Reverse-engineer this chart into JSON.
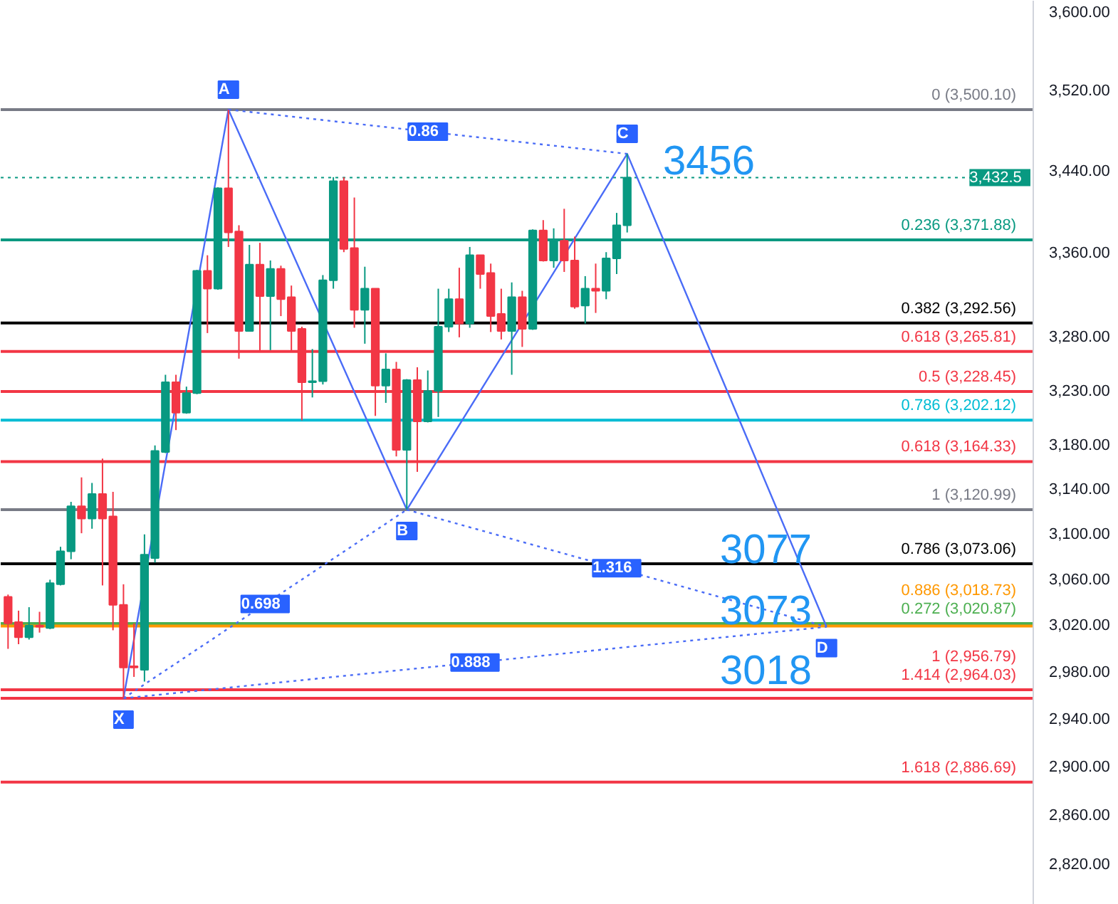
{
  "chart_data": {
    "type": "candlestick",
    "log": true,
    "tick_labels": "y",
    "ylim": [
      2787,
      3611
    ],
    "yticks": [
      {
        "value": 2820,
        "label": "2,820.00"
      },
      {
        "value": 2860,
        "label": "2,860.00"
      },
      {
        "value": 2900,
        "label": "2,900.00"
      },
      {
        "value": 2940,
        "label": "2,940.00"
      },
      {
        "value": 2980,
        "label": "2,980.00"
      },
      {
        "value": 3020,
        "label": "3,020.00"
      },
      {
        "value": 3060,
        "label": "3,060.00"
      },
      {
        "value": 3100,
        "label": "3,100.00"
      },
      {
        "value": 3140,
        "label": "3,140.00"
      },
      {
        "value": 3180,
        "label": "3,180.00"
      },
      {
        "value": 3230,
        "label": "3,230.00"
      },
      {
        "value": 3280,
        "label": "3,280.00"
      },
      {
        "value": 3360,
        "label": "3,360.00"
      },
      {
        "value": 3440,
        "label": "3,440.00"
      },
      {
        "value": 3520,
        "label": "3,520.00"
      },
      {
        "value": 3600,
        "label": "3,600.00"
      }
    ],
    "categories": [
      null,
      null,
      null,
      null,
      null,
      null,
      null,
      null,
      null,
      null,
      null,
      null,
      null,
      null,
      null,
      null,
      null,
      null,
      null,
      null,
      null,
      null,
      null,
      null,
      null,
      null,
      null,
      null,
      null,
      null,
      null,
      null,
      null,
      null,
      null,
      null,
      null,
      null,
      null,
      null,
      null,
      null,
      null,
      null,
      null,
      null,
      null,
      null,
      null,
      null,
      null,
      null,
      null,
      null,
      null,
      null,
      null,
      null,
      null,
      null,
      null,
      null,
      null,
      null,
      null,
      null,
      null,
      null,
      null,
      null,
      null,
      null,
      null,
      null,
      null,
      null,
      null,
      null,
      null,
      null,
      null,
      null,
      null,
      null,
      null,
      null,
      null,
      null,
      null,
      null,
      null,
      null,
      null,
      null,
      null,
      null,
      null,
      null
    ],
    "ohlc": [
      [
        3044,
        3046,
        2999,
        3021
      ],
      [
        3022,
        3032,
        3003,
        3009
      ],
      [
        3009,
        3035,
        3007,
        3019
      ],
      [
        3019,
        3031,
        3013,
        3018
      ],
      [
        3017,
        3059,
        3016,
        3056
      ],
      [
        3055,
        3088,
        3054,
        3084
      ],
      [
        3084,
        3128,
        3077,
        3124
      ],
      [
        3124,
        3150,
        3100,
        3113
      ],
      [
        3113,
        3145,
        3104,
        3135
      ],
      [
        3135,
        3167,
        3054,
        3113
      ],
      [
        3115,
        3137,
        3015,
        3037
      ],
      [
        3037,
        3055,
        2957,
        2983
      ],
      [
        2984,
        3021,
        2975,
        2983
      ],
      [
        2981,
        3099,
        2971,
        3081
      ],
      [
        3078,
        3179,
        3074,
        3174
      ],
      [
        3173,
        3244,
        3172,
        3237
      ],
      [
        3237,
        3244,
        3193,
        3209
      ],
      [
        3209,
        3233,
        3208,
        3227
      ],
      [
        3227,
        3343,
        3226,
        3342
      ],
      [
        3342,
        3357,
        3283,
        3325
      ],
      [
        3325,
        3423,
        3324,
        3422
      ],
      [
        3422,
        3500,
        3365,
        3379
      ],
      [
        3380,
        3386,
        3259,
        3285
      ],
      [
        3285,
        3367,
        3285,
        3348
      ],
      [
        3348,
        3369,
        3265,
        3318
      ],
      [
        3318,
        3352,
        3267,
        3344
      ],
      [
        3344,
        3347,
        3299,
        3315
      ],
      [
        3317,
        3328,
        3265,
        3285
      ],
      [
        3287,
        3289,
        3202,
        3237
      ],
      [
        3237,
        3268,
        3223,
        3238
      ],
      [
        3238,
        3338,
        3235,
        3333
      ],
      [
        3333,
        3433,
        3325,
        3429
      ],
      [
        3429,
        3433,
        3360,
        3363
      ],
      [
        3364,
        3413,
        3288,
        3305
      ],
      [
        3305,
        3346,
        3273,
        3325
      ],
      [
        3325,
        3325,
        3206,
        3234
      ],
      [
        3234,
        3264,
        3218,
        3249
      ],
      [
        3249,
        3256,
        3169,
        3175
      ],
      [
        3175,
        3240,
        3121,
        3239
      ],
      [
        3239,
        3251,
        3155,
        3201
      ],
      [
        3201,
        3248,
        3200,
        3229
      ],
      [
        3229,
        3325,
        3205,
        3289
      ],
      [
        3289,
        3325,
        3284,
        3315
      ],
      [
        3315,
        3345,
        3279,
        3292
      ],
      [
        3292,
        3365,
        3288,
        3357
      ],
      [
        3357,
        3357,
        3325,
        3339
      ],
      [
        3340,
        3349,
        3284,
        3299
      ],
      [
        3301,
        3325,
        3277,
        3285
      ],
      [
        3285,
        3331,
        3244,
        3317
      ],
      [
        3317,
        3323,
        3270,
        3287
      ],
      [
        3287,
        3382,
        3286,
        3381
      ],
      [
        3381,
        3391,
        3351,
        3352
      ],
      [
        3352,
        3383,
        3345,
        3371
      ],
      [
        3371,
        3402,
        3341,
        3352
      ],
      [
        3352,
        3375,
        3306,
        3308
      ],
      [
        3309,
        3337,
        3292,
        3325
      ],
      [
        3325,
        3349,
        3302,
        3323
      ],
      [
        3323,
        3360,
        3315,
        3354
      ],
      [
        3354,
        3398,
        3339,
        3386
      ],
      [
        3386,
        3456,
        3379,
        3432.5
      ],
      null,
      null,
      null,
      null,
      null,
      null,
      null,
      null,
      null,
      null,
      null,
      null,
      null,
      null,
      null,
      null,
      null,
      null,
      null,
      null,
      null,
      null,
      null,
      null,
      null,
      null,
      null,
      null,
      null,
      null,
      null,
      null,
      null,
      null,
      null,
      null,
      null,
      null
    ],
    "colors": [
      "#f23645",
      "#f23645",
      "#089981",
      "#f23645",
      "#089981",
      "#089981",
      "#089981",
      "#f23645",
      "#089981",
      "#f23645",
      "#f23645",
      "#f23645",
      "#f23645",
      "#089981",
      "#089981",
      "#089981",
      "#f23645",
      "#089981",
      "#089981",
      "#f23645",
      "#089981",
      "#f23645",
      "#f23645",
      "#089981",
      "#f23645",
      "#089981",
      "#f23645",
      "#f23645",
      "#f23645",
      "#089981",
      "#089981",
      "#089981",
      "#f23645",
      "#f23645",
      "#089981",
      "#f23645",
      "#089981",
      "#f23645",
      "#089981",
      "#f23645",
      "#089981",
      "#089981",
      "#089981",
      "#f23645",
      "#089981",
      "#f23645",
      "#f23645",
      "#f23645",
      "#089981",
      "#f23645",
      "#089981",
      "#f23645",
      "#089981",
      "#f23645",
      "#f23645",
      "#089981",
      "#f23645",
      "#089981",
      "#089981",
      "#089981",
      null,
      null,
      null,
      null,
      null,
      null,
      null,
      null,
      null,
      null,
      null,
      null,
      null,
      null,
      null,
      null,
      null,
      null,
      null,
      null,
      null,
      null,
      null,
      null,
      null,
      null,
      null,
      null,
      null,
      null,
      null,
      null,
      null,
      null,
      null,
      null,
      null,
      null
    ],
    "series": [
      {
        "type": "line",
        "color": "#4a6cf7",
        "values": [
          null,
          null,
          null,
          null,
          null,
          null,
          null,
          null,
          null,
          null,
          null,
          2956.79,
          null,
          null,
          null,
          null,
          null,
          null,
          null,
          null,
          null,
          3500.1,
          null,
          null,
          null,
          null,
          null,
          null,
          null,
          null,
          null,
          null,
          null,
          null,
          null,
          null,
          null,
          null,
          3120.99,
          null,
          null,
          null,
          null,
          null,
          null,
          null,
          null,
          null,
          null,
          null,
          null,
          null,
          null,
          null,
          null,
          null,
          null,
          null,
          null,
          3456,
          null,
          null,
          null,
          null,
          null,
          null,
          null,
          null,
          null,
          null,
          null,
          null,
          null,
          null,
          null,
          null,
          null,
          null,
          3018,
          null,
          null,
          null,
          null,
          null,
          null,
          null,
          null,
          null,
          null,
          null,
          null,
          null,
          null,
          null,
          null,
          null,
          null,
          null
        ],
        "value_labels": [
          null,
          null,
          null,
          null,
          null,
          null,
          null,
          null,
          null,
          null,
          null,
          "X",
          null,
          null,
          null,
          null,
          null,
          null,
          null,
          null,
          null,
          "A",
          null,
          null,
          null,
          null,
          null,
          null,
          null,
          null,
          null,
          null,
          null,
          null,
          null,
          null,
          null,
          null,
          "B",
          null,
          null,
          null,
          null,
          null,
          null,
          null,
          null,
          null,
          null,
          null,
          null,
          null,
          null,
          null,
          null,
          null,
          null,
          null,
          null,
          "C",
          null,
          null,
          null,
          null,
          null,
          null,
          null,
          null,
          null,
          null,
          null,
          null,
          null,
          null,
          null,
          null,
          null,
          null,
          "D",
          null,
          null,
          null,
          null,
          null,
          null,
          null,
          null,
          null,
          null,
          null,
          null,
          null,
          null,
          null,
          null,
          null,
          null,
          null
        ]
      },
      {
        "type": "line",
        "line_style": "dotted",
        "color": "#4a6cf7",
        "name": "0.698",
        "values": [
          null,
          null,
          null,
          null,
          null,
          null,
          null,
          null,
          null,
          null,
          null,
          2956.79,
          null,
          null,
          null,
          null,
          null,
          null,
          null,
          null,
          null,
          null,
          null,
          null,
          null,
          null,
          null,
          null,
          null,
          null,
          null,
          null,
          null,
          null,
          null,
          null,
          null,
          null,
          3120.99,
          null,
          null,
          null,
          null,
          null,
          null,
          null,
          null,
          null,
          null,
          null,
          null,
          null,
          null,
          null,
          null,
          null,
          null,
          null,
          null,
          null,
          null,
          null,
          null,
          null,
          null,
          null,
          null,
          null,
          null,
          null,
          null,
          null,
          null,
          null,
          null,
          null,
          null,
          null,
          null,
          null,
          null,
          null,
          null,
          null,
          null,
          null,
          null,
          null,
          null,
          null,
          null,
          null,
          null,
          null,
          null,
          null,
          null,
          null
        ]
      },
      {
        "type": "line",
        "line_style": "dotted",
        "color": "#4a6cf7",
        "name": "0.86",
        "values": [
          null,
          null,
          null,
          null,
          null,
          null,
          null,
          null,
          null,
          null,
          null,
          null,
          null,
          null,
          null,
          null,
          null,
          null,
          null,
          null,
          null,
          3500.1,
          null,
          null,
          null,
          null,
          null,
          null,
          null,
          null,
          null,
          null,
          null,
          null,
          null,
          null,
          null,
          null,
          null,
          null,
          null,
          null,
          null,
          null,
          null,
          null,
          null,
          null,
          null,
          null,
          null,
          null,
          null,
          null,
          null,
          null,
          null,
          null,
          null,
          3456,
          null,
          null,
          null,
          null,
          null,
          null,
          null,
          null,
          null,
          null,
          null,
          null,
          null,
          null,
          null,
          null,
          null,
          null,
          null,
          null,
          null,
          null,
          null,
          null,
          null,
          null,
          null,
          null,
          null,
          null,
          null,
          null,
          null,
          null,
          null,
          null,
          null,
          null
        ]
      },
      {
        "type": "line",
        "line_style": "dotted",
        "color": "#4a6cf7",
        "name": "0.888",
        "values": [
          null,
          null,
          null,
          null,
          null,
          null,
          null,
          null,
          null,
          null,
          null,
          2956.79,
          null,
          null,
          null,
          null,
          null,
          null,
          null,
          null,
          null,
          null,
          null,
          null,
          null,
          null,
          null,
          null,
          null,
          null,
          null,
          null,
          null,
          null,
          null,
          null,
          null,
          null,
          null,
          null,
          null,
          null,
          null,
          null,
          null,
          null,
          null,
          null,
          null,
          null,
          null,
          null,
          null,
          null,
          null,
          null,
          null,
          null,
          null,
          null,
          null,
          null,
          null,
          null,
          null,
          null,
          null,
          null,
          null,
          null,
          null,
          null,
          null,
          null,
          null,
          null,
          null,
          null,
          3018,
          null,
          null,
          null,
          null,
          null,
          null,
          null,
          null,
          null,
          null,
          null,
          null,
          null,
          null,
          null,
          null,
          null,
          null,
          null
        ]
      },
      {
        "type": "line",
        "line_style": "dotted",
        "color": "#4a6cf7",
        "name": "1.316",
        "values": [
          null,
          null,
          null,
          null,
          null,
          null,
          null,
          null,
          null,
          null,
          null,
          null,
          null,
          null,
          null,
          null,
          null,
          null,
          null,
          null,
          null,
          null,
          null,
          null,
          null,
          null,
          null,
          null,
          null,
          null,
          null,
          null,
          null,
          null,
          null,
          null,
          null,
          null,
          3120.99,
          null,
          null,
          null,
          null,
          null,
          null,
          null,
          null,
          null,
          null,
          null,
          null,
          null,
          null,
          null,
          null,
          null,
          null,
          null,
          null,
          null,
          null,
          null,
          null,
          null,
          null,
          null,
          null,
          null,
          null,
          null,
          null,
          null,
          null,
          null,
          null,
          null,
          null,
          null,
          3018,
          null,
          null,
          null,
          null,
          null,
          null,
          null,
          null,
          null,
          null,
          null,
          null,
          null,
          null,
          null,
          null,
          null,
          null,
          null
        ]
      }
    ],
    "ref_lines": [
      {
        "axis": "y",
        "value": 3500.1,
        "label": "0 (3,500.10)",
        "color": "#787b86"
      },
      {
        "axis": "y",
        "value": 3432.5,
        "label": "3,432.5",
        "color": "#089981",
        "line_style": "dotted"
      },
      {
        "axis": "y",
        "value": 3371.88,
        "label": "0.236 (3,371.88)",
        "color": "#089981"
      },
      {
        "axis": "y",
        "value": 3292.56,
        "label": "0.382 (3,292.56)",
        "color": "#000000"
      },
      {
        "axis": "y",
        "value": 3265.81,
        "label": "0.618 (3,265.81)",
        "color": "#f23645"
      },
      {
        "axis": "y",
        "value": 3228.45,
        "label": "0.5 (3,228.45)",
        "color": "#f23645"
      },
      {
        "axis": "y",
        "value": 3202.12,
        "label": "0.786 (3,202.12)",
        "color": "#00bcd4"
      },
      {
        "axis": "y",
        "value": 3164.33,
        "label": "0.618 (3,164.33)",
        "color": "#f23645"
      },
      {
        "axis": "y",
        "value": 3120.99,
        "label": "1 (3,120.99)",
        "color": "#787b86"
      },
      {
        "axis": "y",
        "value": 3073.06,
        "label": "0.786 (3,073.06)",
        "color": "#000000"
      },
      {
        "axis": "y",
        "value": 3020.87,
        "label": "0.272 (3,020.87)",
        "color": "#4caf50"
      },
      {
        "axis": "y",
        "value": 3018.73,
        "label": "0.886 (3,018.73)",
        "color": "#ff9800"
      },
      {
        "axis": "y",
        "value": 2964.03,
        "label": "1.414 (2,964.03)",
        "color": "#f23645"
      },
      {
        "axis": "y",
        "value": 2956.79,
        "label": "1 (2,956.79)",
        "color": "#f23645"
      },
      {
        "axis": "y",
        "value": 2886.69,
        "label": "1.618 (2,886.69)",
        "color": "#f23645"
      }
    ],
    "annotations": [
      "3456",
      "3077",
      "3073",
      "3018"
    ]
  }
}
